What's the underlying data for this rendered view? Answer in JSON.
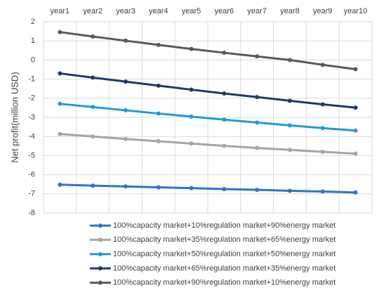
{
  "chart_data": {
    "type": "line",
    "y_label": "Net profit(million USD)",
    "categories": [
      "year1",
      "year2",
      "year3",
      "year4",
      "year5",
      "year6",
      "year7",
      "year8",
      "year9",
      "year10"
    ],
    "series": [
      {
        "name": "100%capacity market+10%regulation market+90%energy market",
        "color": "#2e74c6",
        "values": [
          -6.52,
          -6.57,
          -6.61,
          -6.66,
          -6.7,
          -6.75,
          -6.79,
          -6.84,
          -6.88,
          -6.93
        ]
      },
      {
        "name": "100%capacity market+35%regulation market+65%energy market",
        "color": "#a5a5a5",
        "values": [
          -3.87,
          -4.0,
          -4.13,
          -4.25,
          -4.37,
          -4.49,
          -4.6,
          -4.7,
          -4.8,
          -4.9
        ]
      },
      {
        "name": "100%capacity market+50%regulation market+50%energy market",
        "color": "#1f9bdb",
        "values": [
          -2.29,
          -2.46,
          -2.63,
          -2.8,
          -2.96,
          -3.12,
          -3.27,
          -3.42,
          -3.56,
          -3.69
        ]
      },
      {
        "name": "100%capacity market+65%regulation market+35%energy market",
        "color": "#1f3a6b",
        "values": [
          -0.7,
          -0.92,
          -1.13,
          -1.34,
          -1.55,
          -1.75,
          -1.94,
          -2.13,
          -2.32,
          -2.49
        ]
      },
      {
        "name": "100%capacity market+90%regulation market+10%energy market",
        "color": "#595959",
        "values": [
          1.46,
          1.23,
          1.01,
          0.79,
          0.58,
          0.38,
          0.19,
          0.0,
          -0.25,
          -0.48
        ]
      }
    ],
    "ylim": [
      -8,
      2
    ],
    "yticks": [
      -8,
      -7,
      -6,
      -5,
      -4,
      -3,
      -2,
      -1,
      0,
      1,
      2
    ],
    "grid": true
  }
}
